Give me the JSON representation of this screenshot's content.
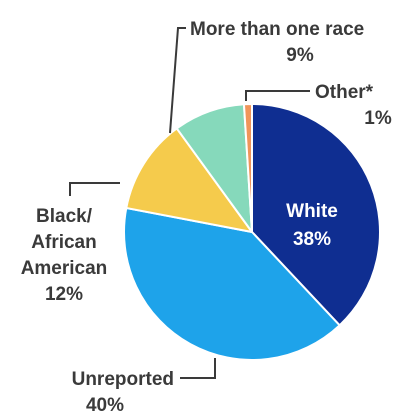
{
  "chart_data": {
    "type": "pie",
    "title": "",
    "start_angle_deg": 0,
    "direction": "clockwise",
    "slices": [
      {
        "name": "White",
        "value": 38,
        "value_label": "38%",
        "color": "#0f2e91"
      },
      {
        "name": "Unreported",
        "value": 40,
        "value_label": "40%",
        "color": "#1ea3ea"
      },
      {
        "name": "Black/ African American",
        "name_lines": [
          "Black/",
          "African",
          "American"
        ],
        "value": 12,
        "value_label": "12%",
        "color": "#f5cb4c"
      },
      {
        "name": "More than one race",
        "value": 9,
        "value_label": "9%",
        "color": "#86d9bb"
      },
      {
        "name": "Other*",
        "value": 1,
        "value_label": "1%",
        "color": "#f0955a"
      }
    ],
    "legend": "none",
    "data_labels": "outside with leader lines (White label inside)"
  }
}
